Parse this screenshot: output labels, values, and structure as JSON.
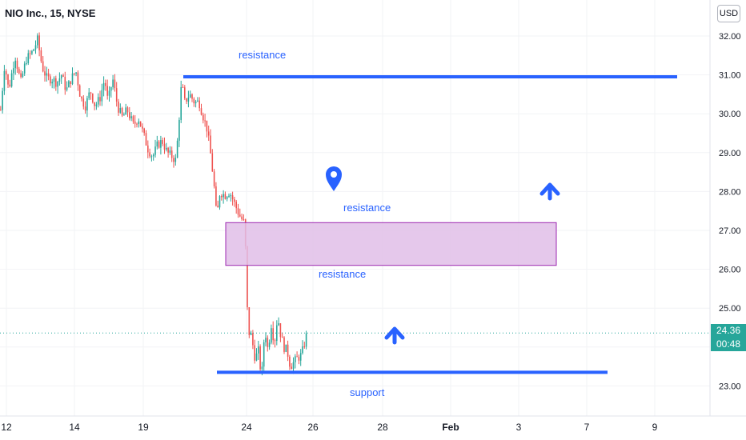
{
  "header": {
    "symbol_title": "NIO Inc., 15, NYSE",
    "currency_button": "USD"
  },
  "price_tag": {
    "price": "24.36",
    "countdown": "00:48"
  },
  "annotations": {
    "top_resistance": "resistance",
    "mid_resistance": "resistance",
    "zone_resistance": "resistance",
    "support": "support"
  },
  "colors": {
    "up": "#26a69a",
    "down": "#ef5350",
    "line": "#2962ff",
    "zone_fill": "#e1bee7",
    "zone_border": "#9c27b0"
  },
  "chart_data": {
    "type": "candlestick",
    "title": "NIO Inc., 15, NYSE",
    "y_axis": {
      "ticks": [
        32.0,
        31.0,
        30.0,
        29.0,
        28.0,
        27.0,
        26.0,
        25.0,
        24.0,
        23.0
      ],
      "range": [
        22.4,
        32.6
      ]
    },
    "x_axis": {
      "ticks": [
        "12",
        "14",
        "19",
        "24",
        "26",
        "28",
        "Feb",
        "3",
        "7",
        "9"
      ]
    },
    "last_price": 24.36,
    "resistance_line_price": 30.95,
    "support_line_price": 23.35,
    "resistance_zone": [
      26.1,
      27.2
    ],
    "price_path": [
      [
        0,
        30.1
      ],
      [
        5,
        31.3
      ],
      [
        10,
        30.6
      ],
      [
        18,
        31.5
      ],
      [
        25,
        30.8
      ],
      [
        32,
        31.4
      ],
      [
        40,
        31.6
      ],
      [
        46,
        31.9
      ],
      [
        52,
        31.2
      ],
      [
        58,
        30.9
      ],
      [
        64,
        30.9
      ],
      [
        70,
        30.8
      ],
      [
        76,
        31.0
      ],
      [
        82,
        30.6
      ],
      [
        88,
        30.9
      ],
      [
        94,
        31.1
      ],
      [
        100,
        30.4
      ],
      [
        106,
        30.2
      ],
      [
        112,
        30.6
      ],
      [
        118,
        30.2
      ],
      [
        124,
        30.4
      ],
      [
        130,
        30.9
      ],
      [
        134,
        30.3
      ],
      [
        140,
        30.9
      ],
      [
        146,
        30.2
      ],
      [
        152,
        29.9
      ],
      [
        158,
        30.1
      ],
      [
        166,
        29.7
      ],
      [
        172,
        29.9
      ],
      [
        178,
        29.5
      ],
      [
        184,
        29.1
      ],
      [
        190,
        28.9
      ],
      [
        196,
        29.2
      ],
      [
        202,
        29.3
      ],
      [
        208,
        29.0
      ],
      [
        214,
        28.9
      ],
      [
        219,
        28.8
      ],
      [
        222,
        29.6
      ],
      [
        226,
        30.8
      ],
      [
        230,
        30.3
      ],
      [
        236,
        30.5
      ],
      [
        242,
        30.3
      ],
      [
        248,
        30.3
      ],
      [
        252,
        30.0
      ],
      [
        258,
        29.6
      ],
      [
        262,
        29.0
      ],
      [
        266,
        28.3
      ],
      [
        270,
        27.3
      ],
      [
        274,
        28.0
      ],
      [
        280,
        27.9
      ],
      [
        286,
        28.0
      ],
      [
        292,
        27.7
      ],
      [
        298,
        27.4
      ],
      [
        304,
        27.2
      ],
      [
        306,
        26.5
      ],
      [
        309,
        24.4
      ],
      [
        313,
        24.3
      ],
      [
        318,
        23.7
      ],
      [
        322,
        23.9
      ],
      [
        326,
        23.2
      ],
      [
        330,
        24.5
      ],
      [
        334,
        23.9
      ],
      [
        338,
        24.6
      ],
      [
        342,
        24.1
      ],
      [
        346,
        24.8
      ],
      [
        350,
        24.3
      ],
      [
        354,
        24.0
      ],
      [
        358,
        23.9
      ],
      [
        362,
        23.5
      ],
      [
        366,
        23.6
      ],
      [
        370,
        23.7
      ],
      [
        376,
        23.8
      ],
      [
        382,
        24.3
      ]
    ]
  }
}
